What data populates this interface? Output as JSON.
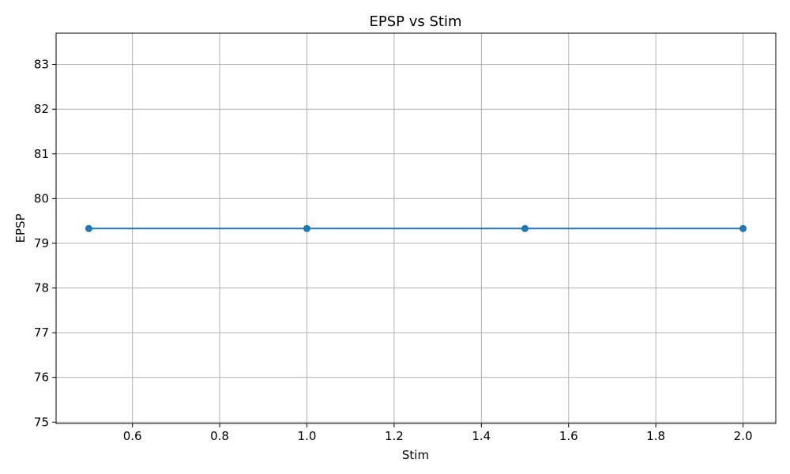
{
  "chart_data": {
    "type": "line",
    "title": "EPSP vs Stim",
    "xlabel": "Stim",
    "ylabel": "EPSP",
    "x": [
      0.5,
      1.0,
      1.5,
      2.0
    ],
    "series": [
      {
        "values": [
          79.33,
          79.33,
          79.33,
          79.33
        ]
      }
    ],
    "xlim": [
      0.425,
      2.075
    ],
    "ylim": [
      74.97,
      83.7
    ],
    "xticks": [
      0.6,
      0.8,
      1.0,
      1.2,
      1.4,
      1.6,
      1.8,
      2.0
    ],
    "xtick_labels": [
      "0.6",
      "0.8",
      "1.0",
      "1.2",
      "1.4",
      "1.6",
      "1.8",
      "2.0"
    ],
    "yticks": [
      75,
      76,
      77,
      78,
      79,
      80,
      81,
      82,
      83
    ],
    "ytick_labels": [
      "75",
      "76",
      "77",
      "78",
      "79",
      "80",
      "81",
      "82",
      "83"
    ],
    "grid": true,
    "line_color": "#1f77b4",
    "grid_color": "#b0b0b0"
  }
}
